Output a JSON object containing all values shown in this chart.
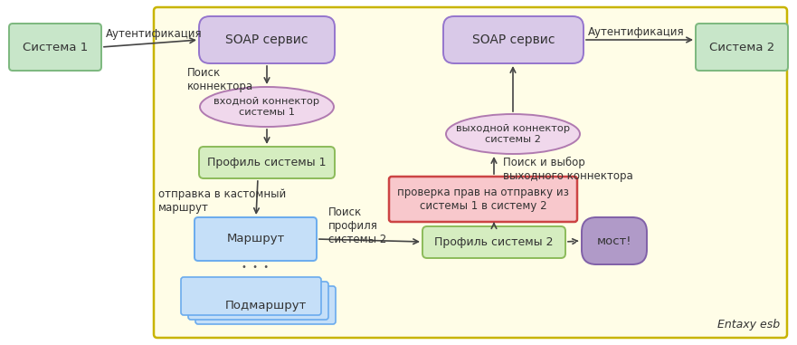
{
  "bg_color": "#fffde7",
  "bg_border_color": "#c8b400",
  "system1_label": "Система 1",
  "system2_label": "Система 2",
  "system_box_color": "#c8e6c9",
  "system_box_border": "#7cb87e",
  "soap1_label": "SOAP сервис",
  "soap2_label": "SOAP сервис",
  "soap_color": "#d9c9e8",
  "soap_border": "#9575cd",
  "connector1_label": "входной коннектор\nсистемы 1",
  "connector2_label": "выходной коннектор\nсистемы 2",
  "connector_color": "#f0d8ec",
  "connector_border": "#b07ab0",
  "profile1_label": "Профиль системы 1",
  "profile2_label": "Профиль системы 2",
  "profile_color": "#d5edc0",
  "profile_border": "#8cbb5a",
  "route_label": "Маршрут",
  "route_color": "#c5dff8",
  "route_border": "#6aabee",
  "subroute_label": "Подмаршрут",
  "subroute_color": "#c5dff8",
  "subroute_border": "#6aabee",
  "check_label": "проверка прав на отправку из\nсистемы 1 в систему 2",
  "check_color": "#f8c8cc",
  "check_border": "#cc4444",
  "bridge_label": "мост!",
  "bridge_color": "#b09ac8",
  "bridge_border": "#8060a8",
  "auth_label": "Аутентификация",
  "search_connector_label": "Поиск\nконнектора",
  "search_profile2_label": "Поиск\nпрофиля\nсистемы 2",
  "search_output_label": "Поиск и выбор\nвыходного коннектора",
  "send_custom_label": "отправка в кастомный\nмаршрут",
  "entaxy_label": "Entaxy esb",
  "arrow_color": "#444444",
  "text_color": "#333333",
  "dots": "• • •"
}
